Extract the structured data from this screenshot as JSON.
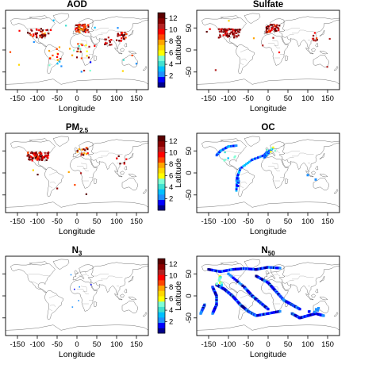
{
  "figure": {
    "panels": [
      {
        "id": "aod",
        "title": "AOD",
        "title_sub": "",
        "show_ylabel": false,
        "show_colorbar": true,
        "variant": "aod"
      },
      {
        "id": "sulfate",
        "title": "Sulfate",
        "title_sub": "",
        "show_ylabel": true,
        "show_colorbar": false,
        "variant": "sulfate"
      },
      {
        "id": "pm25",
        "title": "PM",
        "title_sub": "2.5",
        "show_ylabel": false,
        "show_colorbar": true,
        "variant": "pm25"
      },
      {
        "id": "oc",
        "title": "OC",
        "title_sub": "",
        "show_ylabel": true,
        "show_colorbar": false,
        "variant": "oc"
      },
      {
        "id": "n3",
        "title": "N",
        "title_sub": "3",
        "show_ylabel": false,
        "show_colorbar": true,
        "variant": "n3"
      },
      {
        "id": "n50",
        "title": "N",
        "title_sub": "50",
        "show_ylabel": true,
        "show_colorbar": false,
        "variant": "n50"
      }
    ],
    "xlabel": "Longitude",
    "ylabel": "Latitude",
    "x_ticks": [
      "-150",
      "-100",
      "-50",
      "0",
      "50",
      "100",
      "150"
    ],
    "y_ticks": [
      "-50",
      "0",
      "50"
    ],
    "colorbar_ticks": [
      "2",
      "4",
      "6",
      "8",
      "10",
      "12"
    ],
    "colorbar_colors": [
      "#00008b",
      "#0000ff",
      "#1e90ff",
      "#00bfff",
      "#40e0d0",
      "#7fffd4",
      "#ffff00",
      "#ffd700",
      "#ffa500",
      "#ff4500",
      "#ff0000",
      "#b22222",
      "#8b0000",
      "#5a0000"
    ]
  },
  "chart_data": {
    "type": "map",
    "x_range": [
      -180,
      180
    ],
    "y_range": [
      -90,
      90
    ],
    "colorbar_range": [
      0,
      13
    ]
  }
}
